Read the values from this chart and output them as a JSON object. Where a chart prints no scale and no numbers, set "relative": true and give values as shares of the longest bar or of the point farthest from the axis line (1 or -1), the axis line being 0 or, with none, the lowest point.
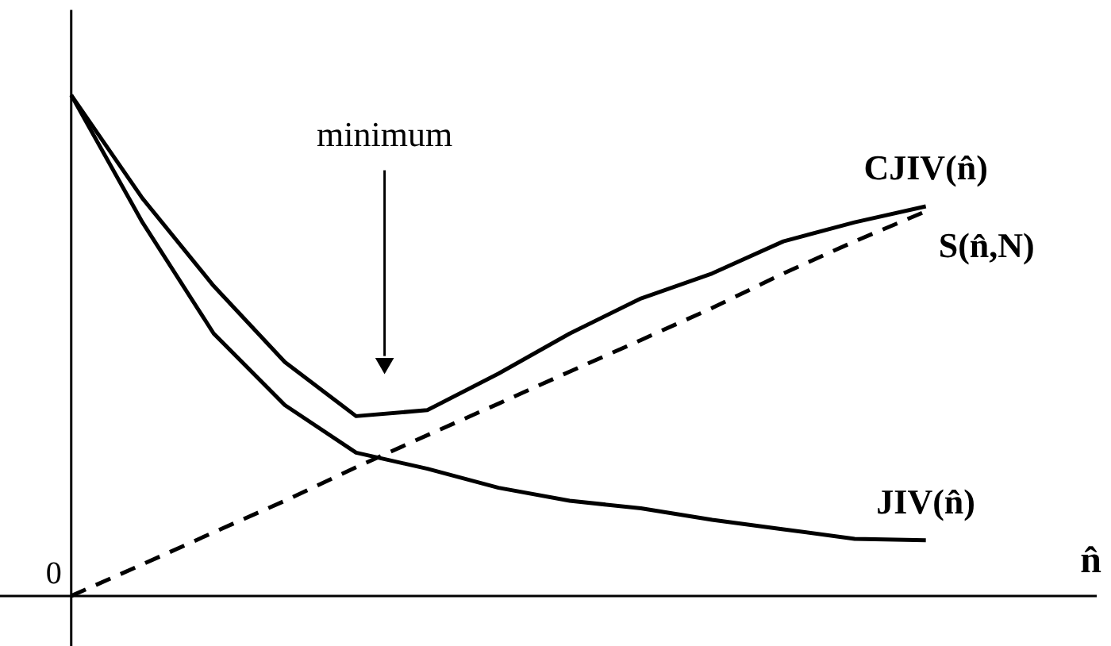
{
  "chart_data": {
    "type": "line",
    "relative": true,
    "xlabel": "n̂",
    "categories": [
      null,
      null,
      null,
      null,
      null,
      null,
      null,
      null,
      null,
      null,
      null,
      null,
      null
    ],
    "series": [
      {
        "name": "CJIV(n̂)",
        "color": "#000000",
        "line_style": "solid",
        "values": [
          1.0,
          0.794,
          0.619,
          0.467,
          0.359,
          0.371,
          0.444,
          0.524,
          0.594,
          0.644,
          0.708,
          0.746,
          0.778
        ]
      },
      {
        "name": "S(n̂,N)",
        "color": "#000000",
        "line_style": "dashed",
        "values": [
          0,
          0.063,
          0.127,
          0.19,
          0.257,
          0.321,
          0.384,
          0.448,
          0.511,
          0.575,
          0.644,
          0.708,
          0.768
        ]
      },
      {
        "name": "JIV(n̂)",
        "color": "#000000",
        "line_style": "solid",
        "values": [
          1.0,
          0.746,
          0.524,
          0.381,
          0.286,
          0.254,
          0.216,
          0.19,
          0.175,
          0.152,
          0.133,
          0.114,
          0.111
        ]
      }
    ],
    "annotations": [
      "0",
      "minimum"
    ]
  }
}
